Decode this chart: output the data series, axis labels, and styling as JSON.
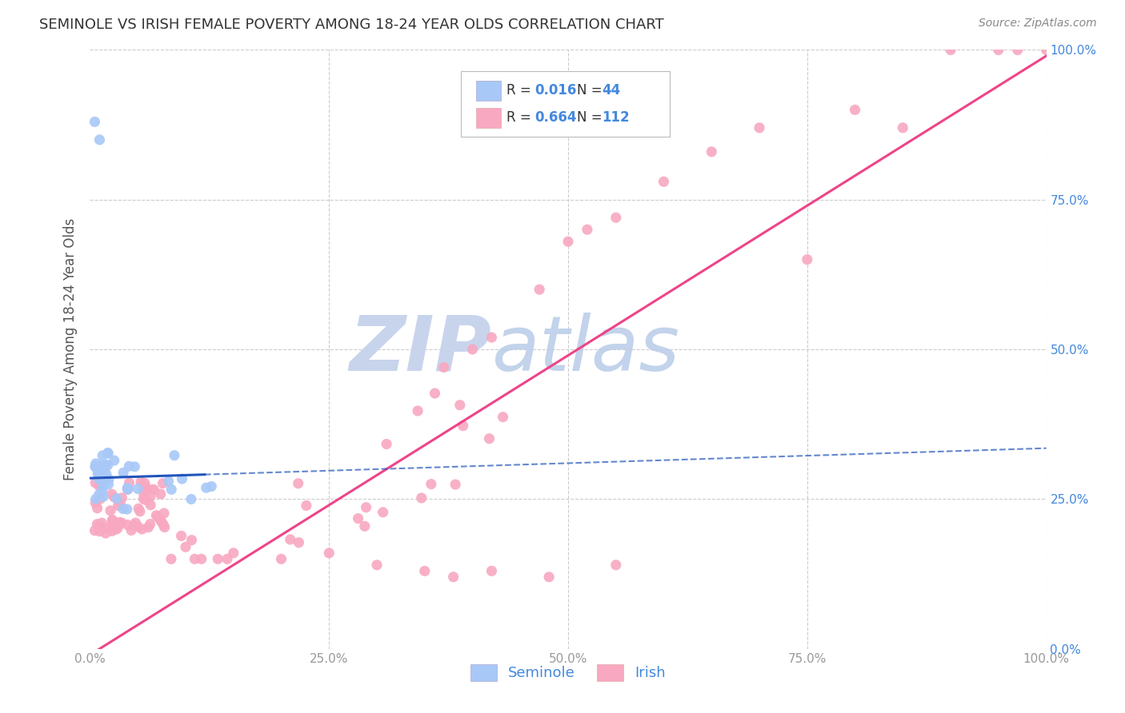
{
  "title": "SEMINOLE VS IRISH FEMALE POVERTY AMONG 18-24 YEAR OLDS CORRELATION CHART",
  "source": "Source: ZipAtlas.com",
  "ylabel": "Female Poverty Among 18-24 Year Olds",
  "xlim": [
    0,
    1.0
  ],
  "ylim": [
    0,
    1.0
  ],
  "seminole_R": 0.016,
  "seminole_N": 44,
  "irish_R": 0.664,
  "irish_N": 112,
  "seminole_color": "#a8c8f8",
  "irish_color": "#f8a8c0",
  "seminole_line_color": "#2255bb",
  "irish_line_color": "#ee4488",
  "watermark_zip_color": "#c0cce8",
  "watermark_atlas_color": "#b8d0f0",
  "background_color": "#ffffff",
  "grid_color": "#cccccc",
  "title_color": "#333333",
  "right_axis_color": "#4488dd",
  "legend_R_color": "#4488dd",
  "source_color": "#888888"
}
